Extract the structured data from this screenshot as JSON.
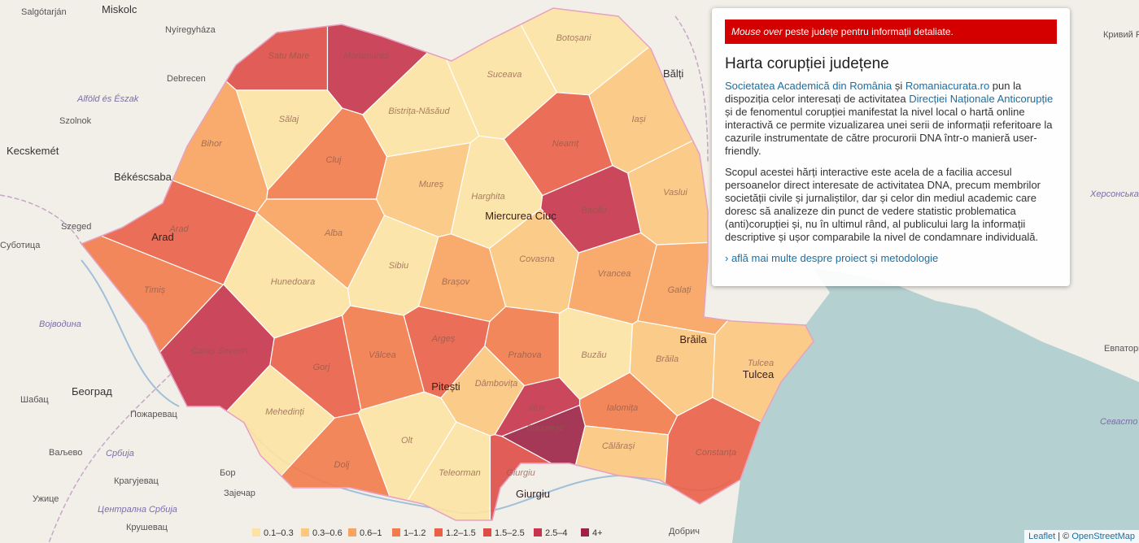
{
  "map": {
    "places": [
      {
        "name": "Salgótarján",
        "kind": "small"
      },
      {
        "name": "Miskolc",
        "kind": "big"
      },
      {
        "name": "Nyíregyháza",
        "kind": "small"
      },
      {
        "name": "Debrecen",
        "kind": "small"
      },
      {
        "name": "Alföld és Észak",
        "kind": "region"
      },
      {
        "name": "Szolnok",
        "kind": "small"
      },
      {
        "name": "Kecskemét",
        "kind": "big"
      },
      {
        "name": "Békéscsaba",
        "kind": "big"
      },
      {
        "name": "Szeged",
        "kind": "small"
      },
      {
        "name": "Суботица",
        "kind": "small"
      },
      {
        "name": "Војводина",
        "kind": "region"
      },
      {
        "name": "Београд",
        "kind": "big"
      },
      {
        "name": "Шабац",
        "kind": "small"
      },
      {
        "name": "Пожаревац",
        "kind": "small"
      },
      {
        "name": "Ваљево",
        "kind": "small"
      },
      {
        "name": "Србија",
        "kind": "region"
      },
      {
        "name": "Крагујевац",
        "kind": "small"
      },
      {
        "name": "Бор",
        "kind": "small"
      },
      {
        "name": "Зајечар",
        "kind": "small"
      },
      {
        "name": "Ужице",
        "kind": "small"
      },
      {
        "name": "Централна Србија",
        "kind": "region"
      },
      {
        "name": "Крушевац",
        "kind": "small"
      },
      {
        "name": "Bălți",
        "kind": "big"
      },
      {
        "name": "Кривий Ріг",
        "kind": "small"
      },
      {
        "name": "Херсонська",
        "kind": "region"
      },
      {
        "name": "Евпатория",
        "kind": "small"
      },
      {
        "name": "Севасто",
        "kind": "region"
      },
      {
        "name": "Добрич",
        "kind": "small"
      }
    ],
    "legend": [
      {
        "label": "0.1–0.3",
        "color": "#fde3a3"
      },
      {
        "label": "0.3–0.6",
        "color": "#fcc77f"
      },
      {
        "label": "0.6–1",
        "color": "#f8a35f"
      },
      {
        "label": "1–1.2",
        "color": "#f37b4d"
      },
      {
        "label": "1.2–1.5",
        "color": "#ea5f48"
      },
      {
        "label": "1.5–2.5",
        "color": "#df4c47"
      },
      {
        "label": "2.5–4",
        "color": "#c7344d"
      },
      {
        "label": "4+",
        "color": "#9c2347"
      }
    ],
    "counties": [
      {
        "name": "Satu Mare",
        "class": 5
      },
      {
        "name": "Maramureș",
        "class": 6
      },
      {
        "name": "Botoșani",
        "class": 0
      },
      {
        "name": "Suceava",
        "class": 0
      },
      {
        "name": "Sălaj",
        "class": 0
      },
      {
        "name": "Bistrița-Năsăud",
        "class": 0
      },
      {
        "name": "Bihor",
        "class": 2
      },
      {
        "name": "Cluj",
        "class": 3
      },
      {
        "name": "Neamț",
        "class": 4
      },
      {
        "name": "Iași",
        "class": 1
      },
      {
        "name": "Mureș",
        "class": 1
      },
      {
        "name": "Harghita",
        "class": 0
      },
      {
        "name": "Bacău",
        "class": 6
      },
      {
        "name": "Vaslui",
        "class": 1
      },
      {
        "name": "Arad",
        "class": 4
      },
      {
        "name": "Alba",
        "class": 2
      },
      {
        "name": "Sibiu",
        "class": 0
      },
      {
        "name": "Covasna",
        "class": 1
      },
      {
        "name": "Brașov",
        "class": 2
      },
      {
        "name": "Vrancea",
        "class": 2
      },
      {
        "name": "Galați",
        "class": 2
      },
      {
        "name": "Timiș",
        "class": 3
      },
      {
        "name": "Hunedoara",
        "class": 0
      },
      {
        "name": "Caraș Severin",
        "class": 6
      },
      {
        "name": "Gorj",
        "class": 4
      },
      {
        "name": "Vâlcea",
        "class": 3
      },
      {
        "name": "Argeș",
        "class": 4
      },
      {
        "name": "Prahova",
        "class": 3
      },
      {
        "name": "Buzău",
        "class": 0
      },
      {
        "name": "Brăila",
        "class": 1
      },
      {
        "name": "Tulcea",
        "class": 1
      },
      {
        "name": "Mehedinți",
        "class": 0
      },
      {
        "name": "Dâmbovița",
        "class": 1
      },
      {
        "name": "Ialomița",
        "class": 3
      },
      {
        "name": "Dolj",
        "class": 3
      },
      {
        "name": "Olt",
        "class": 0
      },
      {
        "name": "Teleorman",
        "class": 0
      },
      {
        "name": "Giurgiu",
        "class": 5
      },
      {
        "name": "Ilfov",
        "class": 6
      },
      {
        "name": "București",
        "class": 7
      },
      {
        "name": "Călărași",
        "class": 1
      },
      {
        "name": "Constanța",
        "class": 4
      }
    ],
    "cities": [
      "Arad",
      "Pitești",
      "Miercurea Ciuc",
      "Brăila",
      "Tulcea",
      "Giurgiu"
    ]
  },
  "panel": {
    "alert_em": "Mouse over",
    "alert_rest": "peste județe pentru informații detaliate.",
    "title": "Harta corupției județene",
    "p1": [
      "Societatea Academică din România",
      " și ",
      "Romaniacurata.ro",
      " pun la dispoziția celor interesați de activitatea ",
      "Direcției Naționale Anticorupție",
      " și de fenomentul corupției manifestat la nivel local o hartă online interactivă ce permite vizualizarea unei serii de informații referitoare la cazurile instrumentate de către procurorii DNA într-o manieră user-friendly."
    ],
    "p2": "Scopul acestei hărți interactive este acela de a facilia accesul persoanelor direct interesate de activitatea DNA, precum membrilor societății civile și jurnaliștilor, dar și celor din mediul academic care doresc să analizeze din punct de vedere statistic problematica (anti)corupției și, nu în ultimul rând, al publicului larg la informații descriptive și ușor comparabile la nivel de condamnare individuală.",
    "more": "› află mai multe despre proiect și metodologie"
  },
  "attribution": {
    "leaflet": "Leaflet",
    "sep": " | © ",
    "osm": "OpenStreetMap"
  }
}
